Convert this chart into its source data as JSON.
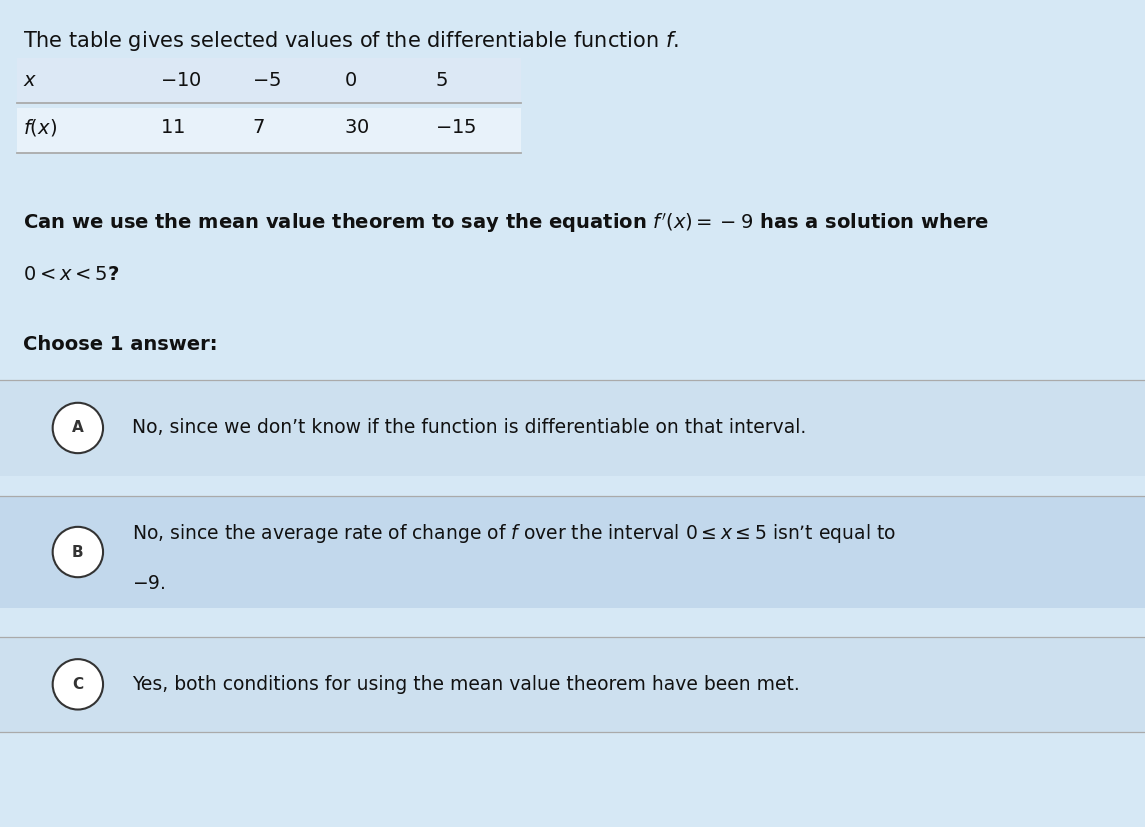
{
  "title": "The table gives selected values of the differentiable function $f$.",
  "table_headers": [
    "$x$",
    "$-10$",
    "$-5$",
    "$0$",
    "$5$"
  ],
  "table_row_label": "$f(x)$",
  "table_values": [
    "$11$",
    "$7$",
    "$30$",
    "$-15$"
  ],
  "question_line1": "Can we use the mean value theorem to say the equation $f'(x) = -9$ has a solution where",
  "question_line2": "$0 < x < 5$?",
  "choose_label": "Choose 1 answer:",
  "options": [
    {
      "letter": "A",
      "text_line1": "No, since we don’t know if the function is differentiable on that interval.",
      "text_line2": ""
    },
    {
      "letter": "B",
      "text_line1": "No, since the average rate of change of $f$ over the interval $0 \\leq x \\leq 5$ isn’t equal to",
      "text_line2": "$-9$."
    },
    {
      "letter": "C",
      "text_line1": "Yes, both conditions for using the mean value theorem have been met.",
      "text_line2": ""
    }
  ],
  "bg_color": "#d6e8f5",
  "option_a_bg": "#cde0ef",
  "option_b_bg": "#c2d8ec",
  "option_c_bg": "#cde0ef",
  "text_color": "#111111",
  "line_color": "#aaaaaa",
  "circle_color": "#333333",
  "font_size_title": 15,
  "font_size_table": 14,
  "font_size_question": 14,
  "font_size_options": 13.5
}
